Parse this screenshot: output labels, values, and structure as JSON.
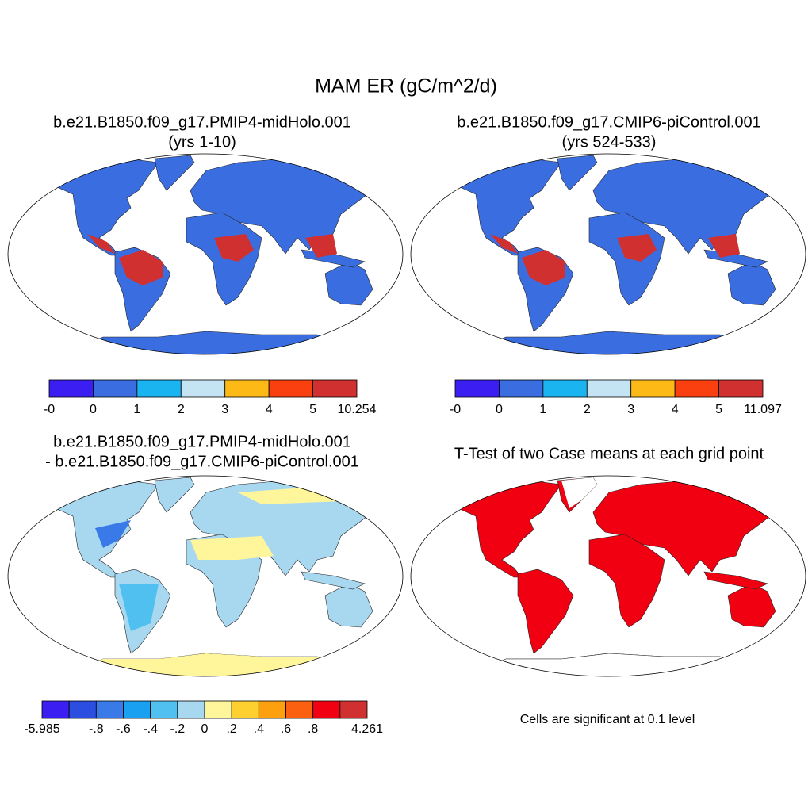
{
  "title": "MAM ER (gC/m^2/d)",
  "panels": [
    {
      "title": "b.e21.B1850.f09_g17.PMIP4-midHolo.001",
      "subtitle": "(yrs 1-10)",
      "colorbar": {
        "colors": [
          "#3b1ff2",
          "#3a6ee0",
          "#1ab4f0",
          "#c4e4f4",
          "#fdb915",
          "#fb4010",
          "#d03030"
        ],
        "labels": [
          "-0",
          "0",
          "1",
          "2",
          "3",
          "4",
          "5",
          "10.254"
        ]
      }
    },
    {
      "title": "b.e21.B1850.f09_g17.CMIP6-piControl.001",
      "subtitle": "(yrs 524-533)",
      "colorbar": {
        "colors": [
          "#3b1ff2",
          "#3a6ee0",
          "#1ab4f0",
          "#c4e4f4",
          "#fdb915",
          "#fb4010",
          "#d03030"
        ],
        "labels": [
          "-0",
          "0",
          "1",
          "2",
          "3",
          "4",
          "5",
          "11.097"
        ]
      }
    },
    {
      "title": "b.e21.B1850.f09_g17.PMIP4-midHolo.001",
      "subtitle": "- b.e21.B1850.f09_g17.CMIP6-piControl.001",
      "colorbar": {
        "colors": [
          "#3b1ff2",
          "#2b4de0",
          "#3a7ae8",
          "#1aa0f0",
          "#4fc0f0",
          "#a8d8f0",
          "#fff59a",
          "#fdd030",
          "#fda010",
          "#fb6010",
          "#f00010",
          "#d03030"
        ],
        "labels": [
          "-5.985",
          null,
          "-.8",
          "-.6",
          "-.4",
          "-.2",
          "0",
          ".2",
          ".4",
          ".6",
          ".8",
          null,
          "4.261"
        ]
      }
    },
    {
      "title": "T-Test of two Case means at each grid point",
      "note": "Cells are significant at 0.1 level"
    }
  ]
}
